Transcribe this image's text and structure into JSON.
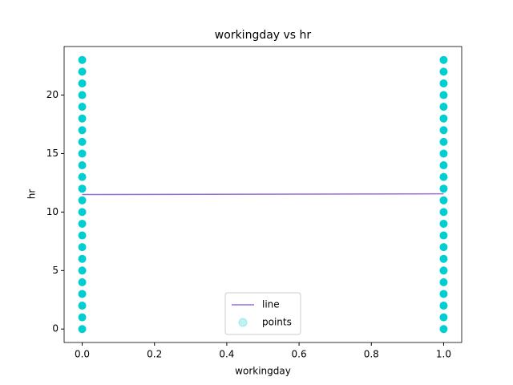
{
  "chart_data": {
    "type": "scatter",
    "title": "workingday vs hr",
    "x_label": "workingday",
    "y_label": "hr",
    "xlim": [
      -0.05,
      1.05
    ],
    "xticks": [
      {
        "value": 0,
        "label": "0.0"
      },
      {
        "value": 0.2,
        "label": "0.2"
      },
      {
        "value": 0.4,
        "label": "0.4"
      },
      {
        "value": 0.6,
        "label": "0.6"
      },
      {
        "value": 0.8,
        "label": "0.8"
      },
      {
        "value": 1,
        "label": "1.0"
      }
    ],
    "ylim": [
      -1.15,
      24.15
    ],
    "yticks": [
      0,
      5,
      10,
      15,
      20
    ],
    "legend": "lower center",
    "series": [
      {
        "name": "line",
        "type": "line",
        "color": "#9370db",
        "x": [
          0,
          1
        ],
        "values": [
          11.5,
          11.56
        ]
      },
      {
        "name": "points",
        "type": "scatter",
        "color": "#00ced1",
        "x": [
          0,
          0,
          0,
          0,
          0,
          0,
          0,
          0,
          0,
          0,
          0,
          0,
          0,
          0,
          0,
          0,
          0,
          0,
          0,
          0,
          0,
          0,
          0,
          0,
          1,
          1,
          1,
          1,
          1,
          1,
          1,
          1,
          1,
          1,
          1,
          1,
          1,
          1,
          1,
          1,
          1,
          1,
          1,
          1,
          1,
          1,
          1,
          1
        ],
        "values": [
          0,
          1,
          2,
          3,
          4,
          5,
          6,
          7,
          8,
          9,
          10,
          11,
          12,
          13,
          14,
          15,
          16,
          17,
          18,
          19,
          20,
          21,
          22,
          23,
          0,
          1,
          2,
          3,
          4,
          5,
          6,
          7,
          8,
          9,
          10,
          11,
          12,
          13,
          14,
          15,
          16,
          17,
          18,
          19,
          20,
          21,
          22,
          23
        ]
      }
    ]
  }
}
